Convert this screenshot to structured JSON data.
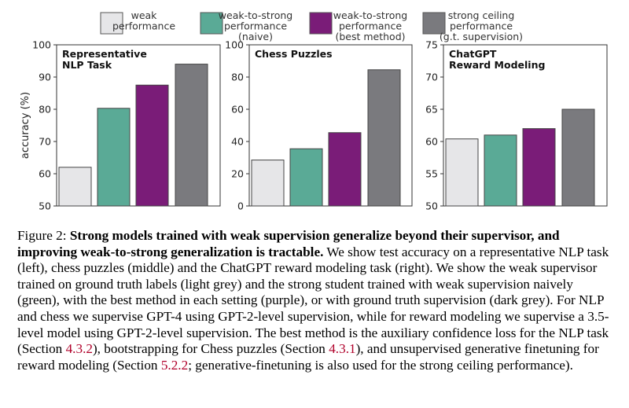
{
  "legend": [
    {
      "label_lines": [
        "weak",
        "performance"
      ],
      "color": "#e6e6e8"
    },
    {
      "label_lines": [
        "weak-to-strong",
        "performance",
        "(naive)"
      ],
      "color": "#5aaa96"
    },
    {
      "label_lines": [
        "weak-to-strong",
        "performance",
        "(best method)"
      ],
      "color": "#7a1c78"
    },
    {
      "label_lines": [
        "strong ceiling",
        "performance",
        "(g.t. supervision)"
      ],
      "color": "#7a7a7e"
    }
  ],
  "chart_data": [
    {
      "type": "bar",
      "title_lines": [
        "Representative",
        "NLP Task"
      ],
      "ylabel": "accuracy (%)",
      "ylim": [
        50,
        100
      ],
      "yticks": [
        50,
        60,
        70,
        80,
        90,
        100
      ],
      "categories": [
        "weak performance",
        "weak-to-strong performance (naive)",
        "weak-to-strong performance (best method)",
        "strong ceiling performance (g.t. supervision)"
      ],
      "values": [
        62,
        80.3,
        87.5,
        94
      ]
    },
    {
      "type": "bar",
      "title_lines": [
        "Chess Puzzles"
      ],
      "ylabel": "",
      "ylim": [
        0,
        100
      ],
      "yticks": [
        0,
        20,
        40,
        60,
        80,
        100
      ],
      "categories": [
        "weak performance",
        "weak-to-strong performance (naive)",
        "weak-to-strong performance (best method)",
        "strong ceiling performance (g.t. supervision)"
      ],
      "values": [
        28.5,
        35.5,
        45.5,
        84.5
      ]
    },
    {
      "type": "bar",
      "title_lines": [
        "ChatGPT",
        "Reward Modeling"
      ],
      "ylabel": "",
      "ylim": [
        50,
        75
      ],
      "yticks": [
        50,
        55,
        60,
        65,
        70,
        75
      ],
      "categories": [
        "weak performance",
        "weak-to-strong performance (naive)",
        "weak-to-strong performance (best method)",
        "strong ceiling performance (g.t. supervision)"
      ],
      "values": [
        60.4,
        61.0,
        62.0,
        65.0
      ]
    }
  ],
  "caption": {
    "label": "Figure 2:",
    "bold": "Strong models trained with weak supervision generalize beyond their supervisor, and improving weak-to-strong generalization is tractable.",
    "text1": "We show test accuracy on a representative NLP task (left), chess puzzles (middle) and the ChatGPT reward modeling task (right). We show the weak supervisor trained on ground truth labels (light grey) and the strong student trained with weak supervision naively (green), with the best method in each setting (purple), or with ground truth supervision (dark grey). For NLP and chess we supervise GPT-4 using GPT-2-level supervision, while for reward modeling we supervise a 3.5-level model using GPT-2-level supervision. The best method is the auxiliary confidence loss for the NLP task (Section",
    "ref1": "4.3.2",
    "text2": "), bootstrapping for Chess puzzles (Section",
    "ref2": "4.3.1",
    "text3": "), and unsupervised generative finetuning for reward modeling (Section",
    "ref3": "5.2.2",
    "text4": "; generative-finetuning is also used for the strong ceiling performance)."
  }
}
